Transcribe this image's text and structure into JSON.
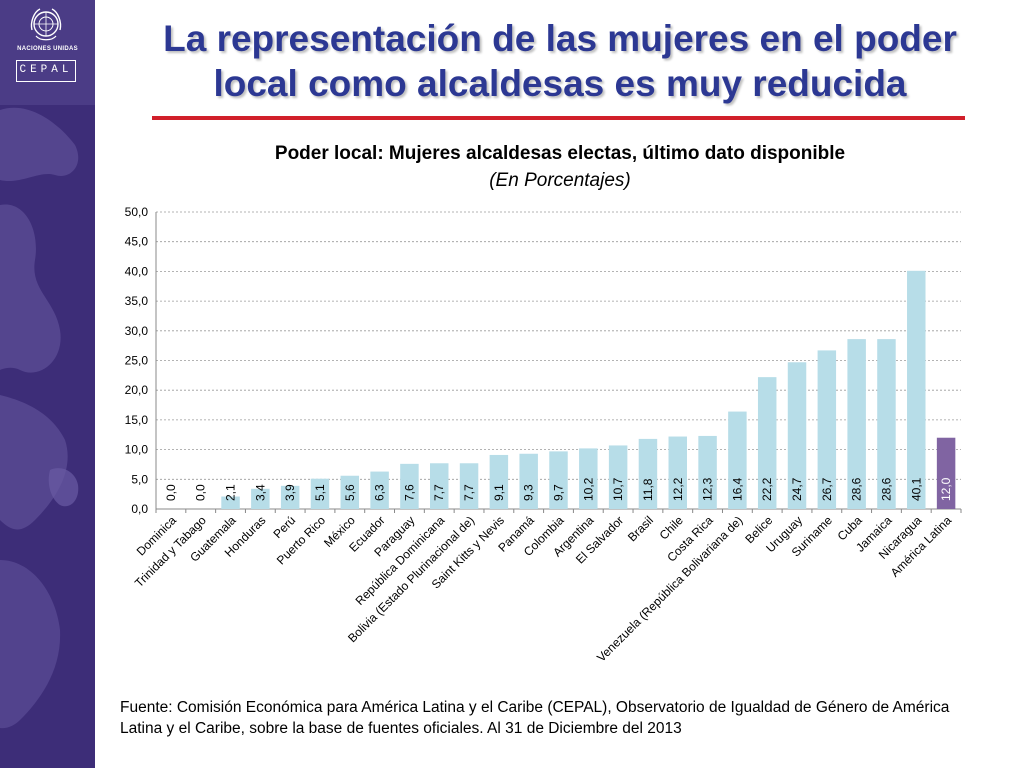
{
  "slide": {
    "title_line1": "La representación de las mujeres en el poder",
    "title_line2": "local como alcaldesas es muy reducida",
    "source_note": "Fuente: Comisión Económica para América Latina y el Caribe (CEPAL), Observatorio de Igualdad de Género de América Latina y el Caribe, sobre la base de fuentes oficiales. Al 31 de Diciembre del 2013"
  },
  "logos": {
    "un_name": "NACIONES UNIDAS",
    "cepal_name": "CEPAL"
  },
  "colors": {
    "sidebar": "#3d2d78",
    "title": "#2c3893",
    "rule": "#d11f2a",
    "bar": "#b7dde8",
    "highlight_bar": "#8064a2"
  },
  "chart_data": {
    "type": "bar",
    "title": "Poder local: Mujeres alcaldesas electas, último dato disponible",
    "subtitle": "(En Porcentajes)",
    "categories": [
      "Dominica",
      "Trinidad y Tabago",
      "Guatemala",
      "Honduras",
      "Perú",
      "Puerto Rico",
      "México",
      "Ecuador",
      "Paraguay",
      "República Dominicana",
      "Bolivia (Estado Plurinacional de)",
      "Saint Kitts y Nevis",
      "Panamá",
      "Colombia",
      "Argentina",
      "El Salvador",
      "Brasil",
      "Chile",
      "Costa Rica",
      "Venezuela (República Bolivariana de)",
      "Belice",
      "Uruguay",
      "Suriname",
      "Cuba",
      "Jamaica",
      "Nicaragua",
      "América Latina"
    ],
    "values": [
      0.0,
      0.0,
      2.1,
      3.4,
      3.9,
      5.1,
      5.6,
      6.3,
      7.6,
      7.7,
      7.7,
      9.1,
      9.3,
      9.7,
      10.2,
      10.7,
      11.8,
      12.2,
      12.3,
      16.4,
      22.2,
      24.7,
      26.7,
      28.6,
      28.6,
      40.1,
      12.0
    ],
    "value_labels": [
      "0,0",
      "0,0",
      "2,1",
      "3,4",
      "3,9",
      "5,1",
      "5,6",
      "6,3",
      "7,6",
      "7,7",
      "7,7",
      "9,1",
      "9,3",
      "9,7",
      "10,2",
      "10,7",
      "11,8",
      "12,2",
      "12,3",
      "16,4",
      "22,2",
      "24,7",
      "26,7",
      "28,6",
      "28,6",
      "40,1",
      "12,0"
    ],
    "highlight_category": "América Latina",
    "ylim": [
      0,
      50
    ],
    "yticks": [
      "0,0",
      "5,0",
      "10,0",
      "15,0",
      "20,0",
      "25,0",
      "30,0",
      "35,0",
      "40,0",
      "45,0",
      "50,0"
    ],
    "grid": true,
    "legend": "none"
  }
}
